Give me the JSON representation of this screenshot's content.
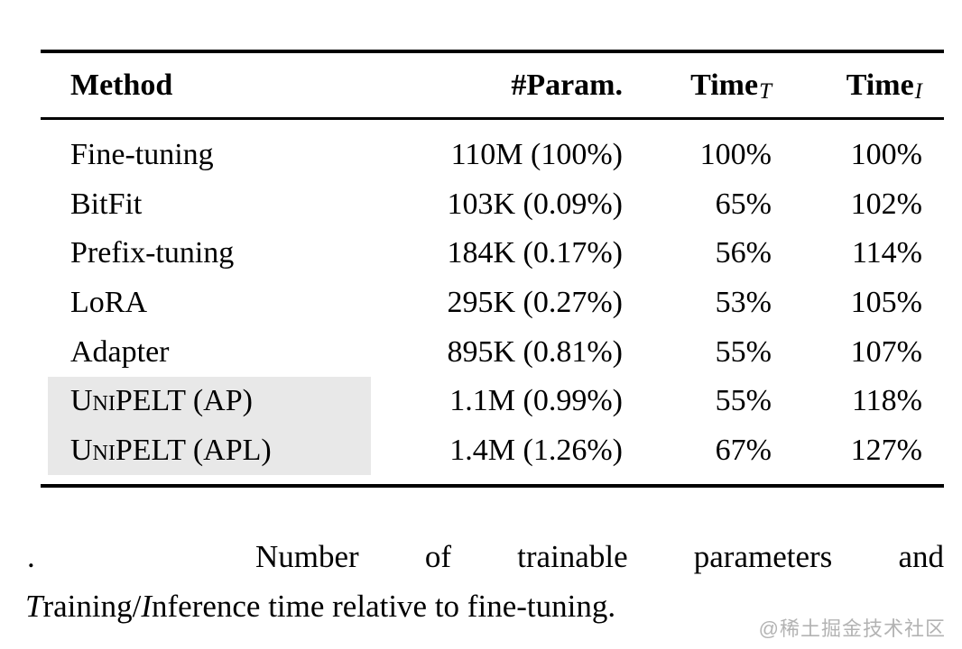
{
  "page": {
    "background": "#ffffff"
  },
  "table": {
    "header": {
      "method": "Method",
      "param": "#Param.",
      "time_label": "Time",
      "time_t_sub": "T",
      "time_i_sub": "I"
    },
    "rows": [
      {
        "method": "Fine-tuning",
        "param": "110M (100%)",
        "time_t": "100%",
        "time_i": "100%",
        "highlight": false,
        "smallcaps": false
      },
      {
        "method": "BitFit",
        "param": "103K (0.09%)",
        "time_t": "65%",
        "time_i": "102%",
        "highlight": false,
        "smallcaps": false
      },
      {
        "method": "Prefix-tuning",
        "param": "184K (0.17%)",
        "time_t": "56%",
        "time_i": "114%",
        "highlight": false,
        "smallcaps": false
      },
      {
        "method": "LoRA",
        "param": "295K (0.27%)",
        "time_t": "53%",
        "time_i": "105%",
        "highlight": false,
        "smallcaps": false
      },
      {
        "method": "Adapter",
        "param": "895K (0.81%)",
        "time_t": "55%",
        "time_i": "107%",
        "highlight": false,
        "smallcaps": false
      },
      {
        "method": "UniPELT (AP)",
        "param": "1.1M (0.99%)",
        "time_t": "55%",
        "time_i": "118%",
        "highlight": true,
        "smallcaps": true
      },
      {
        "method": "UniPELT (APL)",
        "param": "1.4M (1.26%)",
        "time_t": "67%",
        "time_i": "127%",
        "highlight": true,
        "smallcaps": true
      }
    ],
    "highlight_color": "#e8e8e8",
    "rule_color": "#000000"
  },
  "caption": {
    "leading_mark": ".",
    "line1": "Number of trainable parameters and",
    "line2_segments": [
      {
        "text": "T",
        "italic": true
      },
      {
        "text": "raining/",
        "italic": false
      },
      {
        "text": "I",
        "italic": true
      },
      {
        "text": "nference time relative to fine-tuning.",
        "italic": false
      }
    ]
  },
  "watermark": {
    "text": "@稀土掘金技术社区",
    "color": "#b3b3b3"
  }
}
